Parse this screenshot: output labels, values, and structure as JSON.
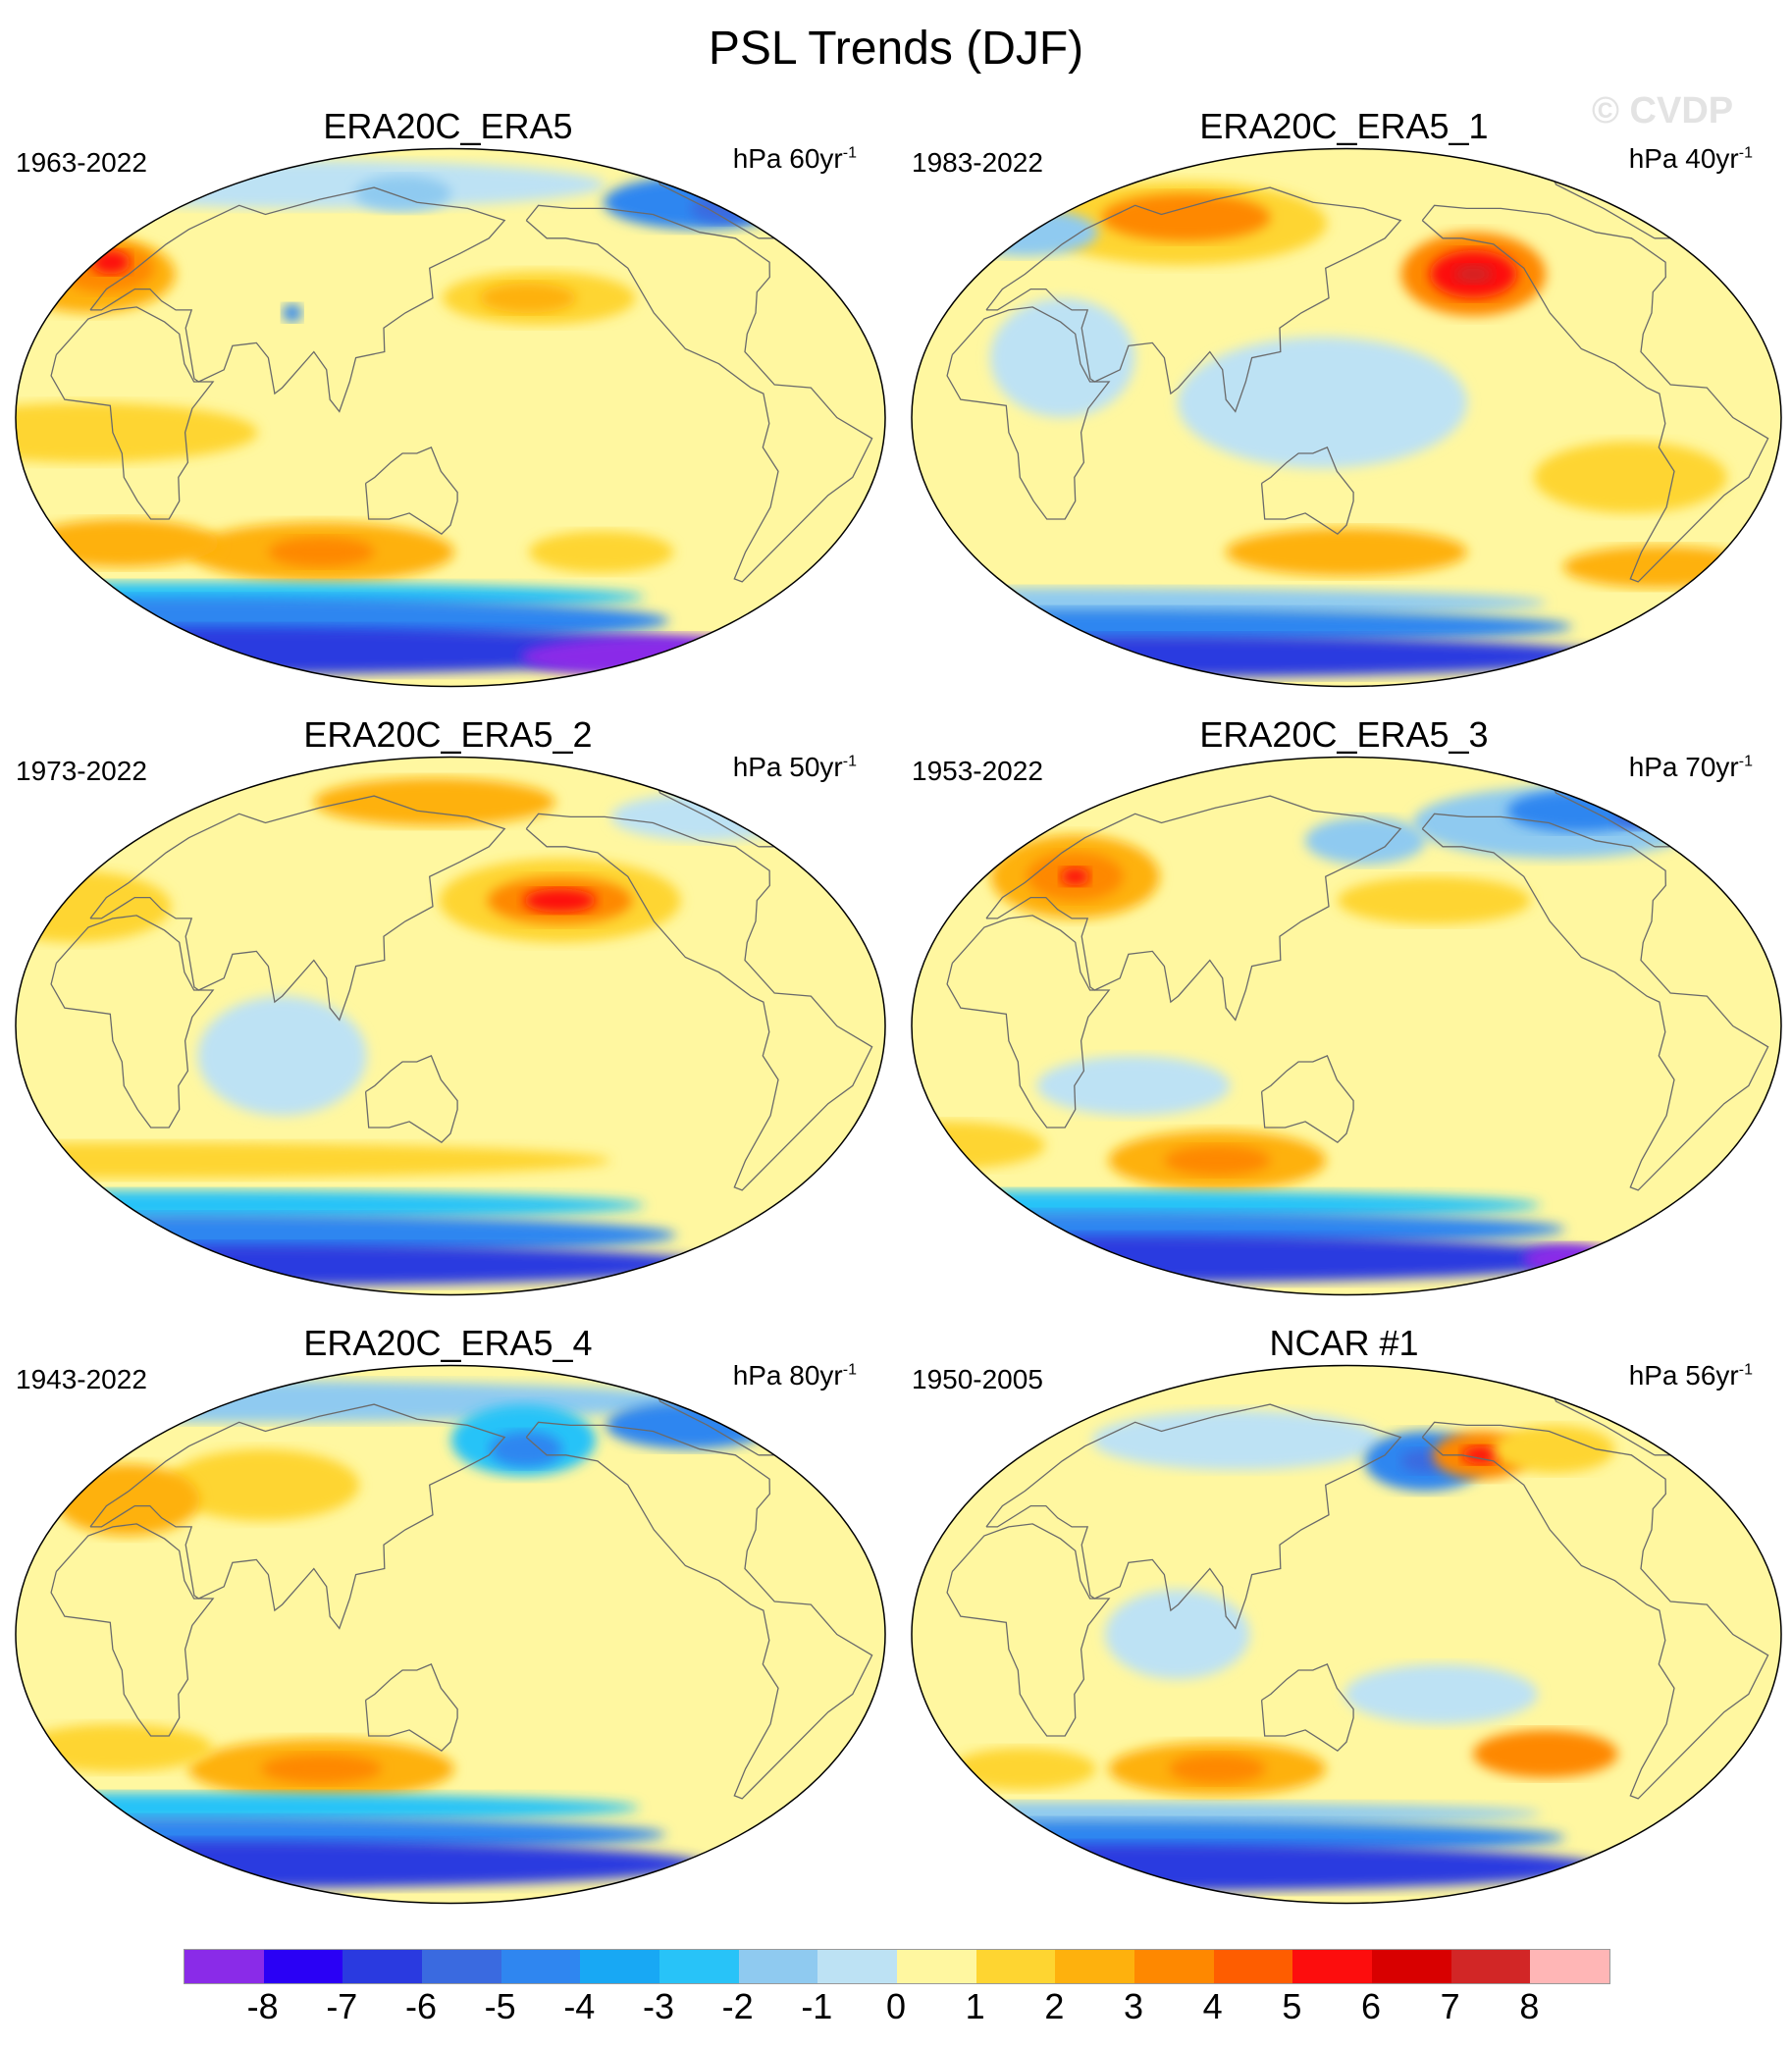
{
  "figure": {
    "title": "PSL Trends (DJF)",
    "watermark": "© CVDP"
  },
  "panels": [
    {
      "title": "ERA20C_ERA5",
      "period": "1963-2022",
      "units": "hPa 60yr",
      "units_sup": "-1"
    },
    {
      "title": "ERA20C_ERA5_1",
      "period": "1983-2022",
      "units": "hPa 40yr",
      "units_sup": "-1"
    },
    {
      "title": "ERA20C_ERA5_2",
      "period": "1973-2022",
      "units": "hPa 50yr",
      "units_sup": "-1"
    },
    {
      "title": "ERA20C_ERA5_3",
      "period": "1953-2022",
      "units": "hPa 70yr",
      "units_sup": "-1"
    },
    {
      "title": "ERA20C_ERA5_4",
      "period": "1943-2022",
      "units": "hPa 80yr",
      "units_sup": "-1"
    },
    {
      "title": "NCAR #1",
      "period": "1950-2005",
      "units": "hPa 56yr",
      "units_sup": "-1"
    }
  ],
  "colorbar": {
    "colors": [
      "#8a2be8",
      "#2a00f5",
      "#2a3ae0",
      "#3a6ae0",
      "#2f86f0",
      "#18a8f4",
      "#28c3f8",
      "#8fcaf0",
      "#bde2f4",
      "#fff7a0",
      "#fed531",
      "#feb10d",
      "#fe8800",
      "#fe5d00",
      "#fd0d0d",
      "#d80000",
      "#d22626",
      "#ffb6b6"
    ],
    "labels": [
      "-8",
      "-7",
      "-6",
      "-5",
      "-4",
      "-3",
      "-2",
      "-1",
      "0",
      "1",
      "2",
      "3",
      "4",
      "5",
      "6",
      "7",
      "8"
    ]
  },
  "panel_fields": [
    {
      "base": "#fff7a0",
      "blobs": [
        {
          "lon": 60,
          "lat": 78,
          "rx": 120,
          "ry": 8,
          "color": "#bde2f4"
        },
        {
          "lon": -60,
          "lat": 72,
          "rx": 40,
          "ry": 9,
          "color": "#2f86f0"
        },
        {
          "lon": -50,
          "lat": 70,
          "rx": 14,
          "ry": 5,
          "color": "#3a6ae0"
        },
        {
          "lon": 120,
          "lat": 75,
          "rx": 20,
          "ry": 6,
          "color": "#8fcaf0"
        },
        {
          "lon": -170,
          "lat": 40,
          "rx": 40,
          "ry": 9,
          "color": "#fed531"
        },
        {
          "lon": -175,
          "lat": 40,
          "rx": 20,
          "ry": 5,
          "color": "#feb10d"
        },
        {
          "lon": -20,
          "lat": 48,
          "rx": 35,
          "ry": 13,
          "color": "#feb10d"
        },
        {
          "lon": -15,
          "lat": 50,
          "rx": 20,
          "ry": 8,
          "color": "#fe8800"
        },
        {
          "lon": -15,
          "lat": 52,
          "rx": 8,
          "ry": 4,
          "color": "#fd0d0d"
        },
        {
          "lon": 80,
          "lat": 35,
          "rx": 4,
          "ry": 3,
          "color": "#2f86f0"
        },
        {
          "lon": 0,
          "lat": -5,
          "rx": 70,
          "ry": 10,
          "color": "#fed531"
        },
        {
          "lon": 90,
          "lat": -45,
          "rx": 55,
          "ry": 10,
          "color": "#feb10d"
        },
        {
          "lon": 90,
          "lat": -45,
          "rx": 22,
          "ry": 5,
          "color": "#fe8800"
        },
        {
          "lon": 0,
          "lat": -42,
          "rx": 40,
          "ry": 8,
          "color": "#feb10d"
        },
        {
          "lon": -140,
          "lat": -45,
          "rx": 30,
          "ry": 7,
          "color": "#fed531"
        },
        {
          "lon": 0,
          "lat": -60,
          "rx": 200,
          "ry": 5,
          "color": "#28c3f8"
        },
        {
          "lon": 0,
          "lat": -68,
          "rx": 200,
          "ry": 8,
          "color": "#2f86f0"
        },
        {
          "lon": 0,
          "lat": -78,
          "rx": 200,
          "ry": 8,
          "color": "#2a3ae0"
        },
        {
          "lon": -60,
          "lat": -80,
          "rx": 60,
          "ry": 7,
          "color": "#8a2be8"
        }
      ]
    },
    {
      "base": "#fff7a0",
      "blobs": [
        {
          "lon": 60,
          "lat": 65,
          "rx": 60,
          "ry": 14,
          "color": "#fed531"
        },
        {
          "lon": 60,
          "lat": 67,
          "rx": 35,
          "ry": 8,
          "color": "#fe8800"
        },
        {
          "lon": -150,
          "lat": 48,
          "rx": 30,
          "ry": 14,
          "color": "#fe8800"
        },
        {
          "lon": -150,
          "lat": 48,
          "rx": 18,
          "ry": 8,
          "color": "#fd0d0d"
        },
        {
          "lon": -150,
          "lat": 48,
          "rx": 8,
          "ry": 3,
          "color": "#d22626"
        },
        {
          "lon": -20,
          "lat": 62,
          "rx": 30,
          "ry": 8,
          "color": "#8fcaf0"
        },
        {
          "lon": 140,
          "lat": 5,
          "rx": 60,
          "ry": 22,
          "color": "#bde2f4"
        },
        {
          "lon": 30,
          "lat": 20,
          "rx": 30,
          "ry": 20,
          "color": "#bde2f4"
        },
        {
          "lon": -90,
          "lat": -20,
          "rx": 40,
          "ry": 12,
          "color": "#fed531"
        },
        {
          "lon": 150,
          "lat": -45,
          "rx": 50,
          "ry": 8,
          "color": "#feb10d"
        },
        {
          "lon": -60,
          "lat": -50,
          "rx": 40,
          "ry": 7,
          "color": "#feb10d"
        },
        {
          "lon": 0,
          "lat": -62,
          "rx": 200,
          "ry": 5,
          "color": "#8fcaf0"
        },
        {
          "lon": 0,
          "lat": -70,
          "rx": 200,
          "ry": 6,
          "color": "#2f86f0"
        },
        {
          "lon": 0,
          "lat": -80,
          "rx": 200,
          "ry": 7,
          "color": "#2a3ae0"
        }
      ]
    },
    {
      "base": "#fff7a0",
      "blobs": [
        {
          "lon": 140,
          "lat": 75,
          "rx": 50,
          "ry": 8,
          "color": "#feb10d"
        },
        {
          "lon": -160,
          "lat": 42,
          "rx": 50,
          "ry": 14,
          "color": "#fed531"
        },
        {
          "lon": -160,
          "lat": 42,
          "rx": 30,
          "ry": 8,
          "color": "#fe8800"
        },
        {
          "lon": -160,
          "lat": 42,
          "rx": 15,
          "ry": 4,
          "color": "#fd0d0d"
        },
        {
          "lon": -60,
          "lat": 70,
          "rx": 40,
          "ry": 8,
          "color": "#bde2f4"
        },
        {
          "lon": -20,
          "lat": 40,
          "rx": 40,
          "ry": 12,
          "color": "#fed531"
        },
        {
          "lon": 80,
          "lat": -10,
          "rx": 35,
          "ry": 20,
          "color": "#bde2f4"
        },
        {
          "lon": 0,
          "lat": -45,
          "rx": 200,
          "ry": 6,
          "color": "#fed531"
        },
        {
          "lon": 0,
          "lat": -60,
          "rx": 200,
          "ry": 5,
          "color": "#28c3f8"
        },
        {
          "lon": 0,
          "lat": -70,
          "rx": 200,
          "ry": 7,
          "color": "#2f86f0"
        },
        {
          "lon": 0,
          "lat": -80,
          "rx": 200,
          "ry": 7,
          "color": "#2a3ae0"
        }
      ]
    },
    {
      "base": "#fff7a0",
      "blobs": [
        {
          "lon": -90,
          "lat": 68,
          "rx": 60,
          "ry": 12,
          "color": "#8fcaf0"
        },
        {
          "lon": -70,
          "lat": 72,
          "rx": 30,
          "ry": 7,
          "color": "#2f86f0"
        },
        {
          "lon": -40,
          "lat": 70,
          "rx": 10,
          "ry": 4,
          "color": "#3a6ae0"
        },
        {
          "lon": 160,
          "lat": 62,
          "rx": 25,
          "ry": 8,
          "color": "#8fcaf0"
        },
        {
          "lon": 20,
          "lat": 50,
          "rx": 35,
          "ry": 14,
          "color": "#feb10d"
        },
        {
          "lon": 20,
          "lat": 50,
          "rx": 20,
          "ry": 8,
          "color": "#fe8800"
        },
        {
          "lon": 20,
          "lat": 50,
          "rx": 6,
          "ry": 3,
          "color": "#fd0d0d"
        },
        {
          "lon": -170,
          "lat": 42,
          "rx": 40,
          "ry": 8,
          "color": "#fed531"
        },
        {
          "lon": 60,
          "lat": -20,
          "rx": 40,
          "ry": 10,
          "color": "#bde2f4"
        },
        {
          "lon": 90,
          "lat": -45,
          "rx": 45,
          "ry": 10,
          "color": "#feb10d"
        },
        {
          "lon": 90,
          "lat": -45,
          "rx": 22,
          "ry": 5,
          "color": "#fe8800"
        },
        {
          "lon": -30,
          "lat": -40,
          "rx": 40,
          "ry": 8,
          "color": "#fed531"
        },
        {
          "lon": 0,
          "lat": -60,
          "rx": 200,
          "ry": 5,
          "color": "#28c3f8"
        },
        {
          "lon": 0,
          "lat": -68,
          "rx": 200,
          "ry": 6,
          "color": "#2f86f0"
        },
        {
          "lon": 0,
          "lat": -78,
          "rx": 200,
          "ry": 8,
          "color": "#2a3ae0"
        },
        {
          "lon": -60,
          "lat": -78,
          "rx": 20,
          "ry": 5,
          "color": "#8a2be8"
        }
      ]
    },
    {
      "base": "#fff7a0",
      "blobs": [
        {
          "lon": 0,
          "lat": 78,
          "rx": 200,
          "ry": 7,
          "color": "#8fcaf0"
        },
        {
          "lon": -170,
          "lat": 65,
          "rx": 30,
          "ry": 12,
          "color": "#28c3f8"
        },
        {
          "lon": -170,
          "lat": 62,
          "rx": 15,
          "ry": 6,
          "color": "#2f86f0"
        },
        {
          "lon": -70,
          "lat": 70,
          "rx": 35,
          "ry": 8,
          "color": "#2f86f0"
        },
        {
          "lon": 60,
          "lat": 50,
          "rx": 40,
          "ry": 12,
          "color": "#fed531"
        },
        {
          "lon": 0,
          "lat": 45,
          "rx": 30,
          "ry": 12,
          "color": "#feb10d"
        },
        {
          "lon": 90,
          "lat": -45,
          "rx": 55,
          "ry": 10,
          "color": "#feb10d"
        },
        {
          "lon": 90,
          "lat": -45,
          "rx": 25,
          "ry": 5,
          "color": "#fe8800"
        },
        {
          "lon": 0,
          "lat": -38,
          "rx": 40,
          "ry": 8,
          "color": "#fed531"
        },
        {
          "lon": 0,
          "lat": -58,
          "rx": 200,
          "ry": 5,
          "color": "#28c3f8"
        },
        {
          "lon": 0,
          "lat": -67,
          "rx": 200,
          "ry": 6,
          "color": "#2f86f0"
        },
        {
          "lon": 0,
          "lat": -77,
          "rx": 200,
          "ry": 8,
          "color": "#2a3ae0"
        }
      ]
    },
    {
      "base": "#fff7a0",
      "blobs": [
        {
          "lon": 90,
          "lat": 65,
          "rx": 60,
          "ry": 10,
          "color": "#bde2f4"
        },
        {
          "lon": -170,
          "lat": 58,
          "rx": 25,
          "ry": 10,
          "color": "#2f86f0"
        },
        {
          "lon": -170,
          "lat": 58,
          "rx": 10,
          "ry": 4,
          "color": "#3a6ae0"
        },
        {
          "lon": -140,
          "lat": 60,
          "rx": 20,
          "ry": 8,
          "color": "#fe8800"
        },
        {
          "lon": -140,
          "lat": 60,
          "rx": 8,
          "ry": 3,
          "color": "#fd0d0d"
        },
        {
          "lon": -100,
          "lat": 62,
          "rx": 25,
          "ry": 8,
          "color": "#fed531"
        },
        {
          "lon": 80,
          "lat": 0,
          "rx": 30,
          "ry": 15,
          "color": "#bde2f4"
        },
        {
          "lon": -170,
          "lat": -20,
          "rx": 40,
          "ry": 10,
          "color": "#bde2f4"
        },
        {
          "lon": 90,
          "lat": -45,
          "rx": 45,
          "ry": 9,
          "color": "#feb10d"
        },
        {
          "lon": 90,
          "lat": -45,
          "rx": 20,
          "ry": 5,
          "color": "#fe8800"
        },
        {
          "lon": -120,
          "lat": -40,
          "rx": 30,
          "ry": 8,
          "color": "#fe8800"
        },
        {
          "lon": 0,
          "lat": -45,
          "rx": 30,
          "ry": 7,
          "color": "#fed531"
        },
        {
          "lon": 0,
          "lat": -60,
          "rx": 200,
          "ry": 4,
          "color": "#8fcaf0"
        },
        {
          "lon": 0,
          "lat": -68,
          "rx": 200,
          "ry": 6,
          "color": "#2f86f0"
        },
        {
          "lon": 0,
          "lat": -78,
          "rx": 200,
          "ry": 8,
          "color": "#2a3ae0"
        }
      ]
    }
  ]
}
